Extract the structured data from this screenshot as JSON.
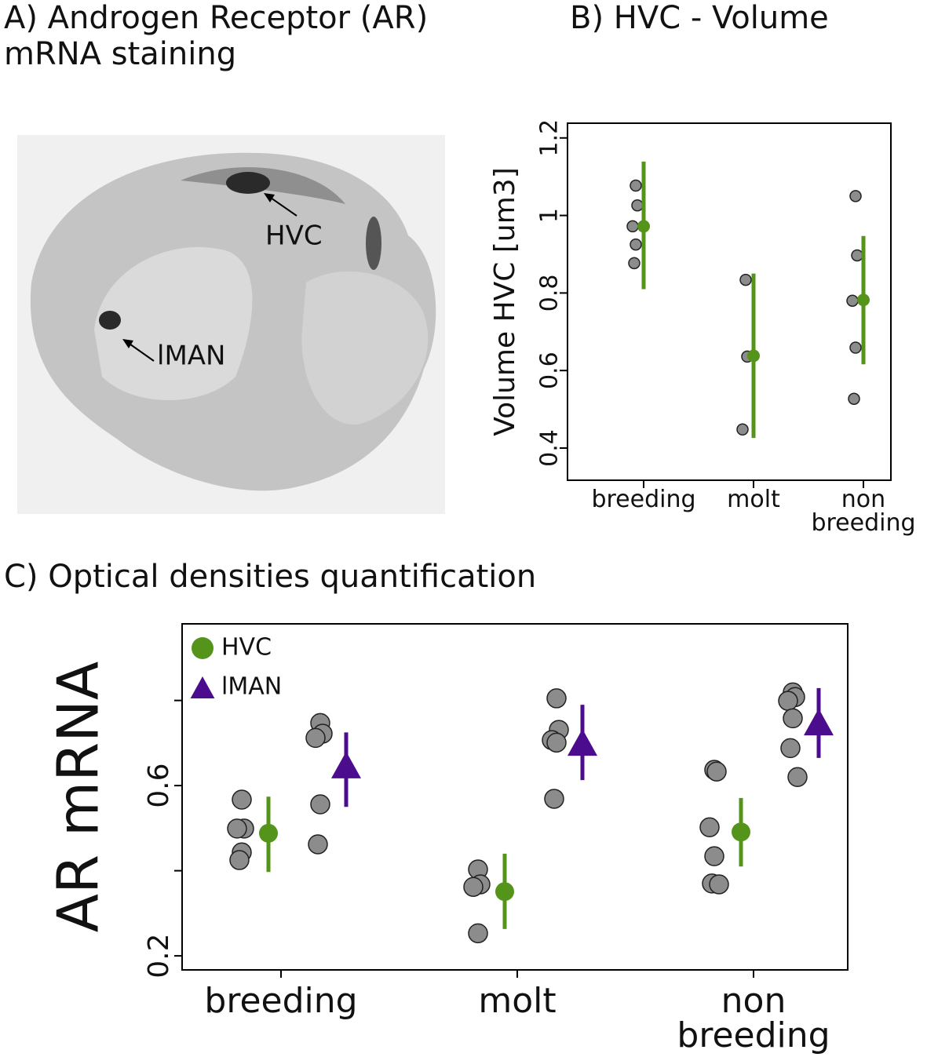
{
  "panel_a": {
    "title": "A) Androgen Receptor (AR) mRNA staining",
    "labels": [
      "HVC",
      "lMAN"
    ]
  },
  "chart_data": [
    {
      "type": "strip",
      "title": "B) HVC - Volume",
      "y_label": "Volume HVC [um3]",
      "categories": [
        "breeding",
        "molt",
        "non breeding"
      ],
      "ylim": [
        0.317,
        1.238
      ],
      "yticks": [
        0.4,
        0.6,
        0.8,
        1.0,
        1.2
      ],
      "point_color": "#8c8c8c",
      "series": [
        {
          "color": "#55941a",
          "marker": "circle",
          "points": [
            [
              1.077,
              1.026,
              0.972,
              0.925,
              0.877
            ],
            [
              0.834,
              0.636,
              0.448
            ],
            [
              1.05,
              0.897,
              0.78,
              0.659,
              0.527
            ]
          ],
          "means": [
            0.972,
            0.638,
            0.782
          ],
          "lower": [
            0.81,
            0.426,
            0.616
          ],
          "upper": [
            1.139,
            0.85,
            0.947
          ]
        }
      ]
    },
    {
      "type": "strip",
      "title": "C) Optical densities quantification",
      "y_label": "AR mRNA",
      "categories": [
        "breeding",
        "molt",
        "non breeding"
      ],
      "ylim": [
        0.167,
        0.98
      ],
      "yticks": [
        0.2,
        0.6
      ],
      "yminor": [
        0.4,
        0.8
      ],
      "point_color": "#8c8c8c",
      "series": [
        {
          "name": "HVC",
          "color": "#55941a",
          "marker": "circle",
          "points": [
            [
              0.567,
              0.499,
              0.499,
              0.443,
              0.425
            ],
            [
              0.403,
              0.368,
              0.362,
              0.253
            ],
            [
              0.637,
              0.633,
              0.502,
              0.434,
              0.37,
              0.368
            ]
          ],
          "means": [
            0.488,
            0.351,
            0.491
          ],
          "lower": [
            0.397,
            0.263,
            0.41
          ],
          "upper": [
            0.574,
            0.44,
            0.571
          ]
        },
        {
          "name": "lMAN",
          "color": "#4b0c8e",
          "marker": "triangle",
          "points": [
            [
              0.747,
              0.722,
              0.712,
              0.556,
              0.462
            ],
            [
              0.805,
              0.731,
              0.707,
              0.701,
              0.569
            ],
            [
              0.819,
              0.808,
              0.799,
              0.758,
              0.688,
              0.62
            ]
          ],
          "means": [
            0.645,
            0.698,
            0.746
          ],
          "lower": [
            0.55,
            0.613,
            0.665
          ],
          "upper": [
            0.725,
            0.79,
            0.829
          ]
        }
      ]
    }
  ]
}
